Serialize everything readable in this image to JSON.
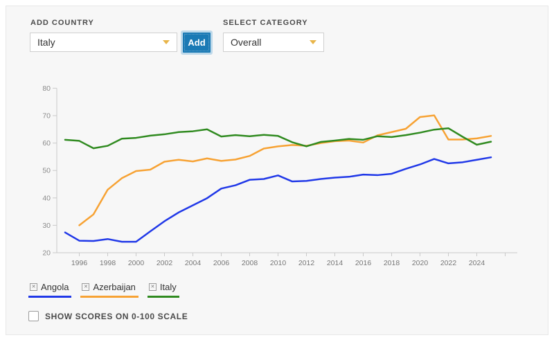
{
  "controls": {
    "add_country_label": "ADD COUNTRY",
    "country_select_value": "Italy",
    "add_button_label": "Add",
    "select_category_label": "SELECT CATEGORY",
    "category_select_value": "Overall"
  },
  "legend": {
    "items": [
      {
        "label": "Angola",
        "color": "#2038e8"
      },
      {
        "label": "Azerbaijan",
        "color": "#f7a233"
      },
      {
        "label": "Italy",
        "color": "#2f8a1f"
      }
    ]
  },
  "scale_toggle": {
    "label": "SHOW SCORES ON 0-100 SCALE",
    "checked": false
  },
  "chart_data": {
    "type": "line",
    "title": "",
    "xlabel": "",
    "ylabel": "",
    "x": [
      1995,
      1996,
      1997,
      1998,
      1999,
      2000,
      2001,
      2002,
      2003,
      2004,
      2005,
      2006,
      2007,
      2008,
      2009,
      2010,
      2011,
      2012,
      2013,
      2014,
      2015,
      2016,
      2017,
      2018,
      2019,
      2020,
      2021,
      2022,
      2023,
      2024,
      2025
    ],
    "series": [
      {
        "name": "Angola",
        "color": "#2038e8",
        "values": [
          27.4,
          24.4,
          24.3,
          25.0,
          24.0,
          24.0,
          27.8,
          31.5,
          34.7,
          37.3,
          39.9,
          43.4,
          44.6,
          46.6,
          46.9,
          48.2,
          46.0,
          46.2,
          46.9,
          47.4,
          47.7,
          48.5,
          48.3,
          48.8,
          50.6,
          52.2,
          54.2,
          52.6,
          53.0,
          53.9,
          54.8
        ]
      },
      {
        "name": "Azerbaijan",
        "color": "#f7a233",
        "values": [
          null,
          30.0,
          34.0,
          43.0,
          47.2,
          49.8,
          50.3,
          53.2,
          53.9,
          53.3,
          54.4,
          53.5,
          54.0,
          55.3,
          58.0,
          58.8,
          59.3,
          59.0,
          60.0,
          60.7,
          60.9,
          60.2,
          62.8,
          64.0,
          65.2,
          69.5,
          70.1,
          61.3,
          61.3,
          61.7,
          62.6
        ]
      },
      {
        "name": "Italy",
        "color": "#2f8a1f",
        "values": [
          61.2,
          60.8,
          58.1,
          59.0,
          61.6,
          61.9,
          62.7,
          63.2,
          64.0,
          64.3,
          65.0,
          62.4,
          62.9,
          62.5,
          63.0,
          62.6,
          60.3,
          58.8,
          60.4,
          60.9,
          61.5,
          61.2,
          62.5,
          62.2,
          62.9,
          63.8,
          64.9,
          65.4,
          62.3,
          59.4,
          60.5
        ]
      }
    ],
    "ylim": [
      20,
      80
    ],
    "yticks": [
      20,
      30,
      40,
      50,
      60,
      70,
      80
    ],
    "xticks": [
      1996,
      1998,
      2000,
      2002,
      2004,
      2006,
      2008,
      2010,
      2012,
      2014,
      2016,
      2018,
      2020,
      2022,
      2024
    ],
    "xticks_minor": [
      2026
    ],
    "grid": false,
    "legend_position": "bottom-left"
  }
}
